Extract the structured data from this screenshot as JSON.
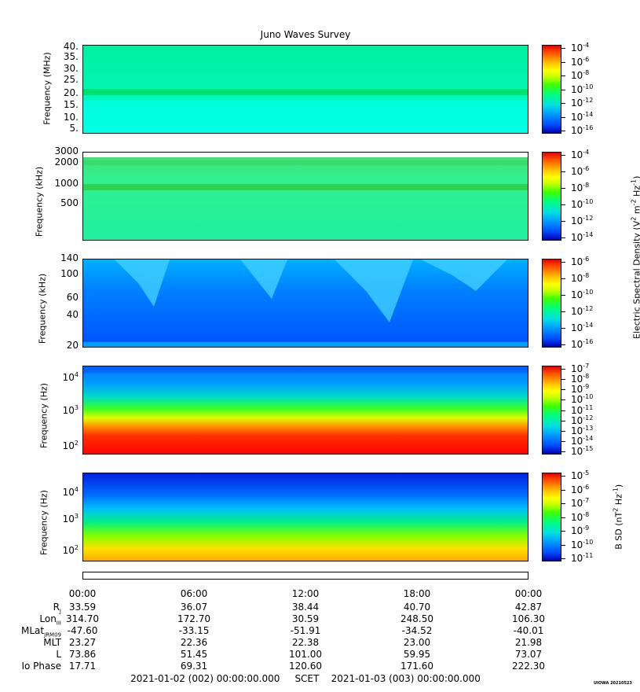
{
  "title": "Juno Waves Survey",
  "stamp": "UIOWA 20210523",
  "chart_data": [
    {
      "type": "heatmap",
      "ylabel": "Frequency (MHz)",
      "yticks": [
        "40.",
        "35.",
        "30.",
        "25.",
        "20.",
        "15.",
        "10.",
        "5."
      ],
      "colorbar_ticks": [
        "10^-4",
        "10^-6",
        "10^-8",
        "10^-10",
        "10^-12",
        "10^-14",
        "10^-16"
      ],
      "description_colors": {
        "background": "#00ffc8",
        "band": "#00e070"
      }
    },
    {
      "type": "heatmap",
      "ylabel": "Frequency (kHz)",
      "yticks": [
        "3000",
        "2000",
        "1000",
        "500"
      ],
      "colorbar_ticks": [
        "10^-4",
        "10^-6",
        "10^-8",
        "10^-10",
        "10^-12",
        "10^-14"
      ],
      "colorbar_label": "Electric Spectral Density (V^2 m^-2 Hz^-1)"
    },
    {
      "type": "heatmap",
      "ylabel": "Frequency (kHz)",
      "yticks": [
        "140",
        "100",
        "60",
        "40",
        "20"
      ],
      "colorbar_ticks": [
        "10^-6",
        "10^-8",
        "10^-10",
        "10^-12",
        "10^-14",
        "10^-16"
      ]
    },
    {
      "type": "heatmap",
      "ylabel": "Frequency (Hz)",
      "yticks": [
        "10^4",
        "10^3",
        "10^2"
      ],
      "colorbar_ticks": [
        "10^-7",
        "10^-8",
        "10^-9",
        "10^-10",
        "10^-11",
        "10^-12",
        "10^-13",
        "10^-14",
        "10^-15"
      ]
    },
    {
      "type": "heatmap",
      "ylabel": "Frequency (Hz)",
      "yticks": [
        "10^4",
        "10^3",
        "10^2"
      ],
      "colorbar_ticks": [
        "10^-5",
        "10^-6",
        "10^-7",
        "10^-8",
        "10^-9",
        "10^-10",
        "10^-11"
      ],
      "colorbar_label": "B SD (nT^2 Hz^-1)"
    }
  ],
  "time_ticks": [
    "00:00",
    "06:00",
    "12:00",
    "18:00",
    "00:00"
  ],
  "ephemeris": [
    {
      "label": "R",
      "sub": "J",
      "values": [
        "33.59",
        "36.07",
        "38.44",
        "40.70",
        "42.87"
      ]
    },
    {
      "label": "Lon",
      "sub": "III",
      "values": [
        "314.70",
        "172.70",
        "30.59",
        "248.50",
        "106.30"
      ]
    },
    {
      "label": "MLat",
      "sub": "JRM09",
      "values": [
        "-47.60",
        "-33.15",
        "-51.91",
        "-34.52",
        "-40.01"
      ]
    },
    {
      "label": "MLT",
      "sub": "",
      "values": [
        "23.27",
        "22.36",
        "22.38",
        "23.00",
        "21.98"
      ]
    },
    {
      "label": "L",
      "sub": "",
      "values": [
        "73.86",
        "51.45",
        "101.00",
        "59.95",
        "73.07"
      ]
    },
    {
      "label": "Io Phase",
      "sub": "",
      "values": [
        "17.71",
        "69.31",
        "120.60",
        "171.60",
        "222.30"
      ]
    }
  ],
  "footer": {
    "start": "2021-01-02 (002) 00:00:00.000",
    "scet": "SCET",
    "end": "2021-01-03 (003) 00:00:00.000"
  }
}
